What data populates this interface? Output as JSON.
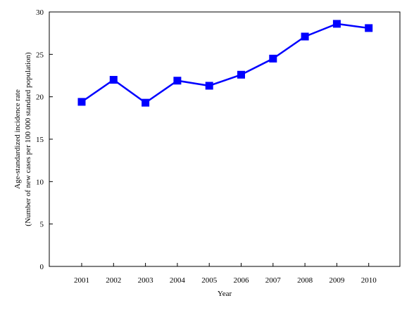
{
  "chart_data": {
    "type": "line",
    "title": "",
    "xlabel": "Year",
    "ylabel_line1": "Age-standardized incidence rate",
    "ylabel_line2": "(Number of new cases per 100 000 standard population)",
    "categories": [
      "2001",
      "2002",
      "2003",
      "2004",
      "2005",
      "2006",
      "2007",
      "2008",
      "2009",
      "2010"
    ],
    "series": [
      {
        "values": [
          19.4,
          22.0,
          19.3,
          21.9,
          21.3,
          22.6,
          24.5,
          27.1,
          28.6,
          28.1
        ],
        "color": "#0000ff",
        "marker": "square"
      }
    ],
    "ylim": [
      0,
      30
    ],
    "yticks": [
      0,
      5,
      10,
      15,
      20,
      25,
      30
    ],
    "grid": false,
    "legend": "none"
  }
}
